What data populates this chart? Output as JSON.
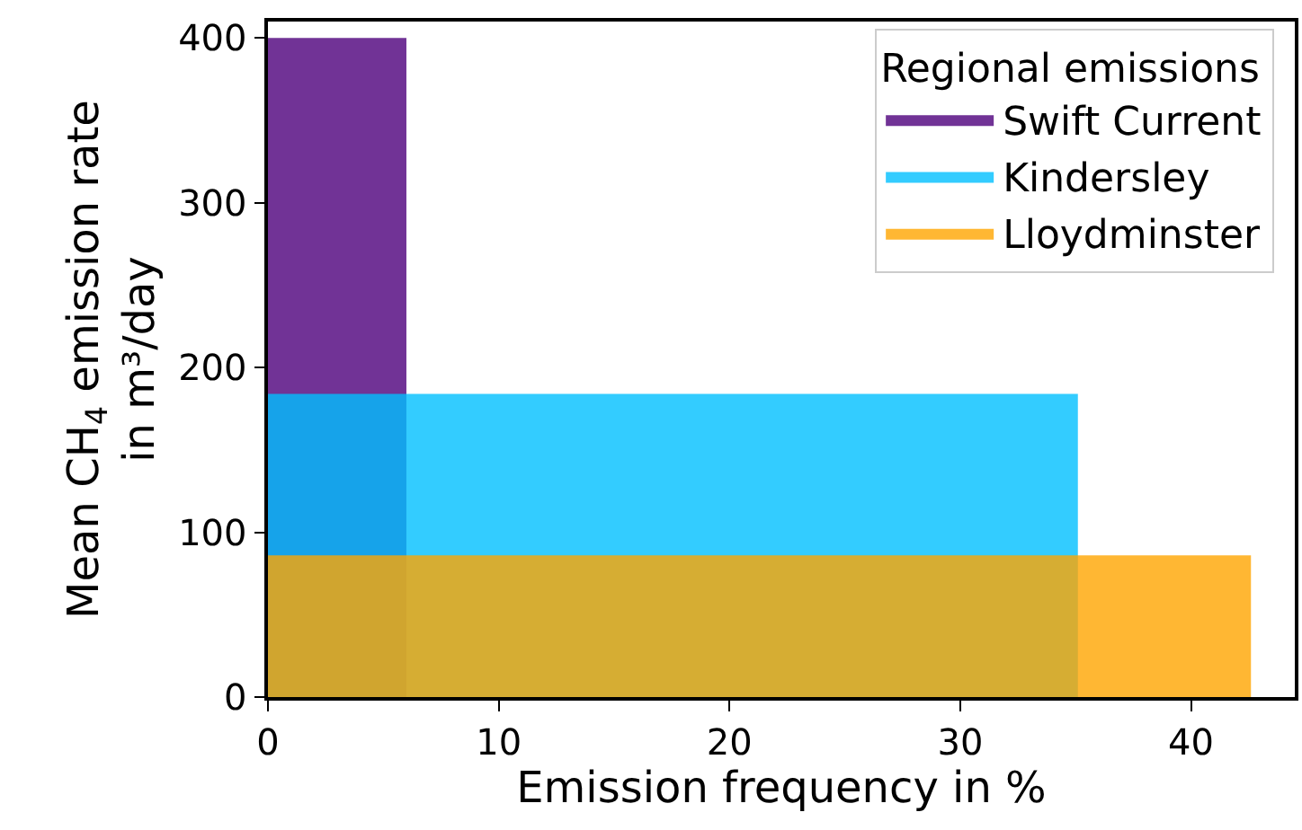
{
  "chart_data": {
    "type": "area",
    "xlabel": "Emission frequency in %",
    "ylabel": "Mean CH$_{4}$ emission rate\nin m³/day",
    "legend_title": "Regional emissions",
    "series": [
      {
        "name": "Swift Current",
        "color": "#4e007c",
        "x": [
          0,
          6
        ],
        "values": [
          400,
          400
        ]
      },
      {
        "name": "Kindersley",
        "color": "#00bfff",
        "x": [
          0,
          35.1
        ],
        "values": [
          184,
          184
        ]
      },
      {
        "name": "Lloydminster",
        "color": "#ffa500",
        "x": [
          0,
          42.6
        ],
        "values": [
          86,
          86
        ]
      }
    ],
    "xlim": [
      0,
      44.5
    ],
    "ylim": [
      0,
      410
    ],
    "xticks": [
      0,
      10,
      20,
      30,
      40
    ],
    "yticks": [
      0,
      100,
      200,
      300,
      400
    ],
    "legend": "top right"
  }
}
